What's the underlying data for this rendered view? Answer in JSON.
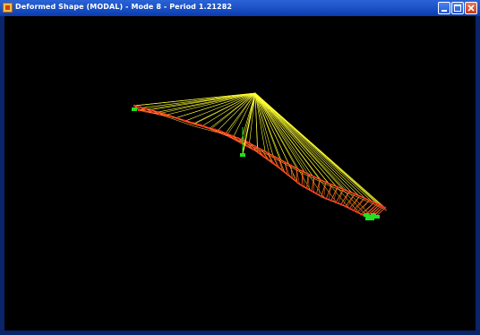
{
  "window": {
    "title": "Deformed Shape (MODAL) - Mode 8 - Period 1.21282",
    "icons": {
      "app": "app-icon",
      "minimize": "minimize-icon",
      "maximize": "maximize-icon",
      "close": "close-icon"
    }
  },
  "colors": {
    "viewport_background": "#000000",
    "cable": "#ffff33",
    "deck": "#ff5a1e",
    "deck_points": "#ff2a2a",
    "supports": "#22e022",
    "titlebar": "#1f56c8"
  },
  "model": {
    "view": "deformed shape 3D wireframe",
    "elements": [
      "cable-stays",
      "bridge-deck",
      "pylon",
      "supports"
    ]
  }
}
